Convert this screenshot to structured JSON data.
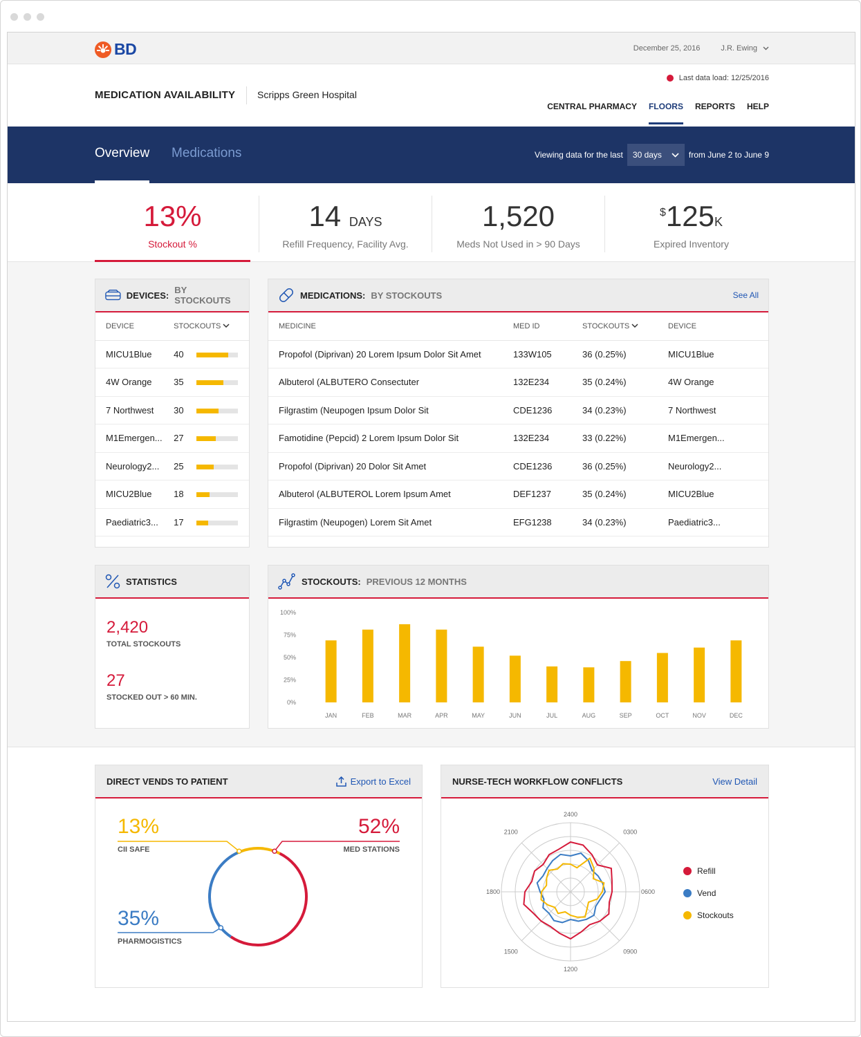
{
  "app": {
    "brand": "BD",
    "date": "December 25, 2016",
    "user": "J.R. Ewing"
  },
  "header": {
    "title": "MEDICATION AVAILABILITY",
    "hospital": "Scripps Green Hospital",
    "last_load": "Last data load: 12/25/2016",
    "nav": [
      "CENTRAL PHARMACY",
      "FLOORS",
      "REPORTS",
      "HELP"
    ],
    "active_nav": "FLOORS"
  },
  "tabs": {
    "overview": "Overview",
    "medications": "Medications"
  },
  "viewing": {
    "prefix": "Viewing data for the last",
    "range": "30 days",
    "suffix": "from June 2 to June 9"
  },
  "kpis": [
    {
      "value": "13%",
      "unit": "",
      "label": "Stockout %"
    },
    {
      "value": "14",
      "unit": "DAYS",
      "label": "Refill Frequency, Facility Avg."
    },
    {
      "value": "1,520",
      "unit": "",
      "label": "Meds Not Used in > 90 Days"
    },
    {
      "prefix": "$",
      "value": "125",
      "unit": "K",
      "label": "Expired Inventory"
    }
  ],
  "devices": {
    "title": "DEVICES:",
    "subtitle": "BY STOCKOUTS",
    "col_device": "DEVICE",
    "col_stockouts": "STOCKOUTS",
    "rows": [
      {
        "name": "MICU1Blue",
        "count": "40",
        "level": 0.77
      },
      {
        "name": "4W Orange",
        "count": "35",
        "level": 0.65
      },
      {
        "name": "7 Northwest",
        "count": "30",
        "level": 0.53
      },
      {
        "name": "M1Emergen...",
        "count": "27",
        "level": 0.47
      },
      {
        "name": "Neurology2...",
        "count": "25",
        "level": 0.42
      },
      {
        "name": "MICU2Blue",
        "count": "18",
        "level": 0.32
      },
      {
        "name": "Paediatric3...",
        "count": "17",
        "level": 0.28
      }
    ]
  },
  "medications": {
    "title": "MEDICATIONS:",
    "subtitle": "BY STOCKOUTS",
    "see_all": "See All",
    "cols": [
      "MEDICINE",
      "MED ID",
      "STOCKOUTS",
      "DEVICE"
    ],
    "rows": [
      [
        "Propofol (Diprivan) 20 Lorem Ipsum Dolor Sit Amet",
        "133W105",
        "36 (0.25%)",
        "MICU1Blue"
      ],
      [
        "Albuterol (ALBUTERO Consectuter",
        "132E234",
        "35 (0.24%)",
        "4W Orange"
      ],
      [
        "Filgrastim (Neupogen Ipsum Dolor Sit",
        "CDE1236",
        "34 (0.23%)",
        "7 Northwest"
      ],
      [
        "Famotidine (Pepcid) 2 Lorem Ipsum Dolor Sit",
        "132E234",
        "33 (0.22%)",
        "M1Emergen..."
      ],
      [
        "Propofol (Diprivan) 20 Dolor Sit Amet",
        "CDE1236",
        "36 (0.25%)",
        "Neurology2..."
      ],
      [
        "Albuterol (ALBUTEROL Lorem Ipsum Amet",
        "DEF1237",
        "35 (0.24%)",
        "MICU2Blue"
      ],
      [
        "Filgrastim (Neupogen)  Lorem Sit Amet",
        "EFG1238",
        "34 (0.23%)",
        "Paediatric3..."
      ]
    ]
  },
  "statistics": {
    "title": "STATISTICS",
    "total": "2,420",
    "total_label": "TOTAL STOCKOUTS",
    "long": "27",
    "long_label": "STOCKED OUT > 60 MIN."
  },
  "stockouts_chart": {
    "title": "STOCKOUTS:",
    "subtitle": "PREVIOUS 12 MONTHS"
  },
  "chart_data": {
    "type": "bar",
    "categories": [
      "JAN",
      "FEB",
      "MAR",
      "APR",
      "MAY",
      "JUN",
      "JUL",
      "AUG",
      "SEP",
      "OCT",
      "NOV",
      "DEC"
    ],
    "values": [
      69,
      81,
      87,
      81,
      62,
      52,
      40,
      39,
      46,
      55,
      61,
      69
    ],
    "yticks": [
      "100%",
      "75%",
      "50%",
      "25%",
      "0%"
    ],
    "ylim": [
      0,
      100
    ],
    "color": "#f5b800"
  },
  "vends": {
    "title": "DIRECT VENDS TO PATIENT",
    "export": "Export to Excel",
    "segments": [
      {
        "pct": "13%",
        "label": "CII SAFE",
        "value": 13,
        "color": "#f5b800"
      },
      {
        "pct": "52%",
        "label": "MED STATIONS",
        "value": 52,
        "color": "#d51a3a"
      },
      {
        "pct": "35%",
        "label": "PHARMOGISTICS",
        "value": 35,
        "color": "#3b7cc4"
      }
    ]
  },
  "workflow": {
    "title": "NURSE-TECH WORKFLOW CONFLICTS",
    "link": "View Detail",
    "axis_labels": [
      "2400",
      "0300",
      "0600",
      "0900",
      "1200",
      "1500",
      "1800",
      "2100"
    ],
    "legend": [
      {
        "name": "Refill",
        "color": "#d51a3a"
      },
      {
        "name": "Vend",
        "color": "#3b7cc4"
      },
      {
        "name": "Stockouts",
        "color": "#f5b800"
      }
    ]
  }
}
